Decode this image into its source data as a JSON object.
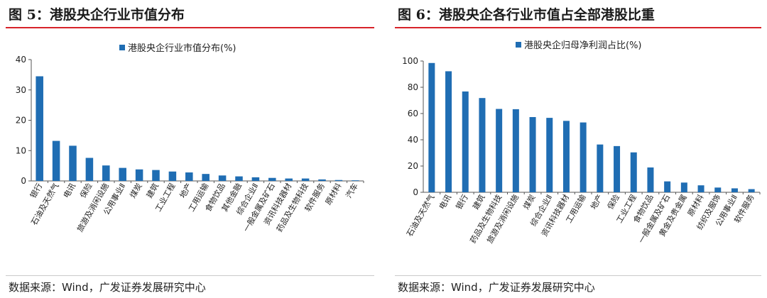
{
  "colors": {
    "bar": "#1f6db3",
    "title_rule": "#d7232a"
  },
  "left": {
    "figure_title": "图 5：港股央企行业市值分布",
    "source": "数据来源：Wind，广发证券发展研究中心"
  },
  "right": {
    "figure_title": "图 6：港股央企各行业市值占全部港股比重",
    "source": "数据来源：Wind，广发证券发展研究中心"
  },
  "chart_data": [
    {
      "type": "bar",
      "title": "",
      "legend": "港股央企行业市值分布(%)",
      "legend_position": "top",
      "categories": [
        "银行",
        "石油及天然气",
        "电讯",
        "保险",
        "旅游及消闲设施",
        "公用事业Ⅱ",
        "煤炭",
        "建筑",
        "工业工程",
        "地产",
        "工用运输",
        "食物饮品",
        "其他金融",
        "综合企业Ⅱ",
        "一般金属及矿石",
        "资讯科技器材",
        "药品及生物科技",
        "软件服务",
        "原材料",
        "汽车"
      ],
      "values": [
        34.5,
        13.2,
        11.6,
        7.6,
        5.1,
        4.3,
        3.8,
        3.6,
        3.1,
        2.8,
        2.3,
        1.8,
        1.5,
        1.2,
        1.0,
        0.8,
        0.8,
        0.5,
        0.3,
        0.2
      ],
      "ylim": [
        0,
        40
      ],
      "yticks": [
        0,
        10,
        20,
        30,
        40
      ],
      "grid": false
    },
    {
      "type": "bar",
      "title": "",
      "legend": "港股央企归母净利润占比(%)",
      "legend_position": "top",
      "categories": [
        "石油及天然气",
        "电讯",
        "银行",
        "建筑",
        "药品及生物科技",
        "旅游及消闲设施",
        "煤炭",
        "综合企业Ⅱ",
        "资讯科技器材",
        "工用运输",
        "地产",
        "保险",
        "工业工程",
        "食物饮品",
        "一般金属及矿石",
        "黄金及贵金属",
        "原材料",
        "纺织及服饰",
        "公用事业Ⅱ",
        "软件服务"
      ],
      "values": [
        98.5,
        92.2,
        76.8,
        71.8,
        63.5,
        63.3,
        57.3,
        56.7,
        54.4,
        53.2,
        36.4,
        35.2,
        30.4,
        18.9,
        8.3,
        7.4,
        5.3,
        3.6,
        3.0,
        2.4
      ],
      "ylim": [
        0,
        100
      ],
      "yticks": [
        0,
        20,
        40,
        60,
        80,
        100
      ],
      "grid": false
    }
  ]
}
